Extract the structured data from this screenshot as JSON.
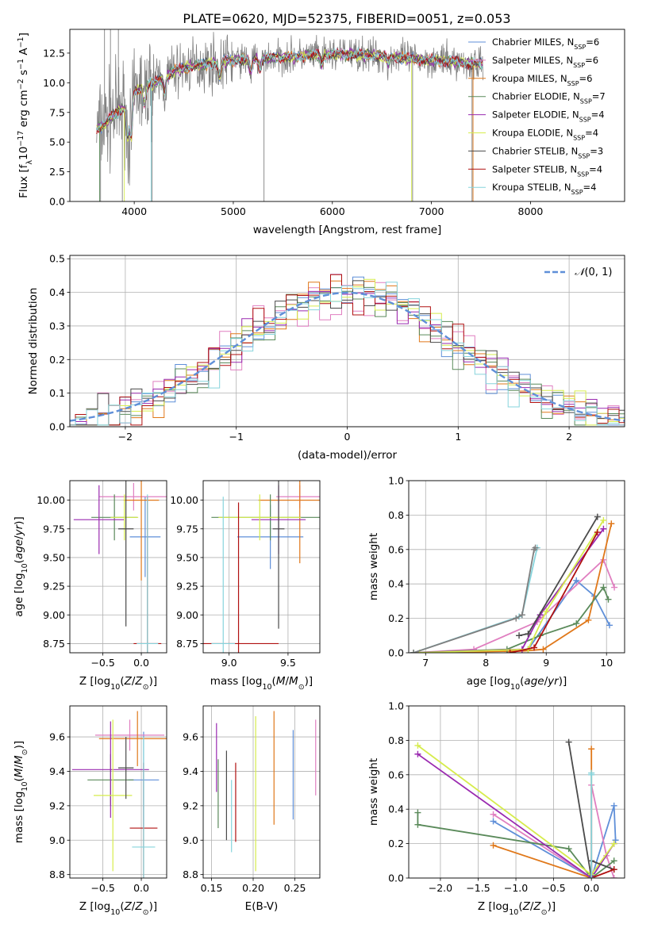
{
  "page_title": "PLATE=0620, MJD=52375, FIBERID=0051, z=0.053",
  "colors": {
    "chabrier_miles": "#5f8fd8",
    "salpeter_miles": "#e07fc0",
    "kroupa_miles": "#e0781a",
    "chabrier_elodie": "#5a8a5a",
    "salpeter_elodie": "#9a2ab0",
    "kroupa_elodie": "#d6ec4c",
    "chabrier_stelib": "#4a4a4a",
    "salpeter_stelib": "#b01010",
    "kroupa_stelib": "#86d4dc",
    "grey": "#808080",
    "normal": "#5f8fd8"
  },
  "chart_data": [
    {
      "id": "spectrum",
      "type": "line",
      "title": "PLATE=0620, MJD=52375, FIBERID=0051, z=0.053",
      "xlabel": "wavelength [Angstrom, rest frame]",
      "ylabel": "Flux [f_λ 10^-17 erg cm^-2 s^-1 A^-1]",
      "xlim": [
        3350,
        8950
      ],
      "ylim": [
        0,
        14.5
      ],
      "xticks": [
        4000,
        5000,
        6000,
        7000,
        8000
      ],
      "yticks": [
        0.0,
        2.5,
        5.0,
        7.5,
        10.0,
        12.5
      ],
      "legend_position": "top-right",
      "legend": [
        {
          "label": "Chabrier MILES, N_SSP=6",
          "base": "Chabrier MILES, N",
          "sub": "SSP",
          "tail": "=6",
          "color": "#5f8fd8"
        },
        {
          "label": "Salpeter MILES, N_SSP=6",
          "base": "Salpeter MILES, N",
          "sub": "SSP",
          "tail": "=6",
          "color": "#e07fc0"
        },
        {
          "label": "Kroupa MILES, N_SSP=6",
          "base": "Kroupa MILES, N",
          "sub": "SSP",
          "tail": "=6",
          "color": "#e0781a"
        },
        {
          "label": "Chabrier ELODIE, N_SSP=7",
          "base": "Chabrier ELODIE, N",
          "sub": "SSP",
          "tail": "=7",
          "color": "#5a8a5a"
        },
        {
          "label": "Salpeter ELODIE, N_SSP=4",
          "base": "Salpeter ELODIE, N",
          "sub": "SSP",
          "tail": "=4",
          "color": "#9a2ab0"
        },
        {
          "label": "Kroupa ELODIE, N_SSP=4",
          "base": "Kroupa ELODIE, N",
          "sub": "SSP",
          "tail": "=4",
          "color": "#d6ec4c"
        },
        {
          "label": "Chabrier STELIB, N_SSP=3",
          "base": "Chabrier STELIB, N",
          "sub": "SSP",
          "tail": "=3",
          "color": "#4a4a4a"
        },
        {
          "label": "Salpeter STELIB, N_SSP=4",
          "base": "Salpeter STELIB, N",
          "sub": "SSP",
          "tail": "=4",
          "color": "#b01010"
        },
        {
          "label": "Kroupa STELIB, N_SSP=4",
          "base": "Kroupa STELIB, N",
          "sub": "SSP",
          "tail": "=4",
          "color": "#86d4dc"
        }
      ],
      "continuum": [
        [
          3620,
          6.1
        ],
        [
          3700,
          6.5
        ],
        [
          3800,
          7.4
        ],
        [
          3900,
          7.9
        ],
        [
          4000,
          9.2
        ],
        [
          4100,
          9.7
        ],
        [
          4200,
          10.0
        ],
        [
          4300,
          10.3
        ],
        [
          4400,
          11.0
        ],
        [
          4500,
          11.2
        ],
        [
          4600,
          11.4
        ],
        [
          4800,
          11.7
        ],
        [
          5000,
          11.9
        ],
        [
          5200,
          12.0
        ],
        [
          5400,
          12.1
        ],
        [
          5600,
          12.2
        ],
        [
          5800,
          12.3
        ],
        [
          6000,
          12.4
        ],
        [
          6200,
          12.4
        ],
        [
          6400,
          12.3
        ],
        [
          6600,
          12.2
        ],
        [
          6800,
          12.0
        ],
        [
          7000,
          11.9
        ],
        [
          7200,
          11.8
        ],
        [
          7400,
          11.6
        ],
        [
          7500,
          11.6
        ]
      ],
      "absorption_lines": [
        [
          3935,
          3.0
        ],
        [
          3970,
          3.5
        ],
        [
          4102,
          1.5
        ],
        [
          4305,
          1.0
        ],
        [
          4862,
          1.2
        ],
        [
          5175,
          1.0
        ],
        [
          5270,
          0.8
        ],
        [
          5892,
          0.8
        ],
        [
          6563,
          0.6
        ]
      ],
      "noise_spikes_down": [
        3660,
        3880,
        4180,
        5310,
        6810,
        7410
      ],
      "noise_spikes_up": [
        3700,
        3760,
        3840
      ]
    },
    {
      "id": "residuals",
      "type": "line",
      "xlabel": "(data-model)/error",
      "ylabel": "Normed distribution",
      "xlim": [
        -2.5,
        2.5
      ],
      "ylim": [
        0,
        0.51
      ],
      "xticks": [
        -2,
        -1,
        0,
        1,
        2
      ],
      "yticks": [
        0.0,
        0.1,
        0.2,
        0.3,
        0.4,
        0.5
      ],
      "legend_position": "top-right",
      "reference_curve_label": "N(0,1)",
      "bin_width": 0.1
    },
    {
      "id": "age-vs-z",
      "type": "scatter",
      "xlabel": "Z [log10(Z/Z_sun)]",
      "ylabel": "age [log10(age/yr)]",
      "xlim": [
        -0.93,
        0.33
      ],
      "ylim": [
        8.67,
        10.17
      ],
      "xticks": [
        -0.5,
        0.0
      ],
      "yticks": [
        8.75,
        9.0,
        9.25,
        9.5,
        9.75,
        10.0
      ],
      "points": [
        {
          "x": 0.05,
          "y": 9.68,
          "xerr": 0.2,
          "yerr": 0.35,
          "color": "#5f8fd8"
        },
        {
          "x": -0.1,
          "y": 10.03,
          "xerr": 0.45,
          "yerr": 0.12,
          "color": "#e07fc0"
        },
        {
          "x": 0.0,
          "y": 10.0,
          "xerr": 0.23,
          "yerr": 0.7,
          "color": "#e0781a"
        },
        {
          "x": -0.35,
          "y": 9.85,
          "xerr": 0.3,
          "yerr": 0.2,
          "color": "#5a8a5a"
        },
        {
          "x": -0.55,
          "y": 9.83,
          "xerr": 0.33,
          "yerr": 0.3,
          "color": "#9a2ab0"
        },
        {
          "x": -0.22,
          "y": 9.85,
          "xerr": 0.18,
          "yerr": 0.2,
          "color": "#d6ec4c"
        },
        {
          "x": -0.2,
          "y": 9.75,
          "xerr": 0.1,
          "yerr": 0.85,
          "color": "#4a4a4a"
        },
        {
          "x": 0.08,
          "y": 8.75,
          "xerr": 0.18,
          "yerr": 1.28,
          "color": "#b01010"
        },
        {
          "x": 0.08,
          "y": 8.75,
          "xerr": 0.14,
          "yerr": 1.3,
          "color": "#86d4dc"
        }
      ]
    },
    {
      "id": "age-vs-mass",
      "type": "scatter",
      "xlabel": "mass [log10(M/M_sun)]",
      "xlim": [
        8.78,
        9.77
      ],
      "ylim": [
        8.67,
        10.17
      ],
      "xticks": [
        9.0,
        9.5
      ],
      "yticks": [
        8.75,
        9.0,
        9.25,
        9.5,
        9.75,
        10.0
      ],
      "points": [
        {
          "x": 9.35,
          "y": 9.68,
          "xerr": 0.28,
          "yerr": 0.28,
          "color": "#5f8fd8"
        },
        {
          "x": 9.6,
          "y": 10.03,
          "xerr": 0.2,
          "yerr": 0.1,
          "color": "#e07fc0"
        },
        {
          "x": 9.6,
          "y": 10.0,
          "xerr": 0.35,
          "yerr": 0.55,
          "color": "#e0781a"
        },
        {
          "x": 9.35,
          "y": 9.85,
          "xerr": 0.5,
          "yerr": 0.2,
          "color": "#5a8a5a"
        },
        {
          "x": 9.42,
          "y": 9.83,
          "xerr": 0.23,
          "yerr": 0.3,
          "color": "#9a2ab0"
        },
        {
          "x": 9.26,
          "y": 9.85,
          "xerr": 0.35,
          "yerr": 0.2,
          "color": "#d6ec4c"
        },
        {
          "x": 9.42,
          "y": 9.75,
          "xerr": 0.05,
          "yerr": 0.87,
          "color": "#4a4a4a"
        },
        {
          "x": 9.08,
          "y": 8.75,
          "xerr": 0.34,
          "yerr": 1.23,
          "color": "#b01010"
        },
        {
          "x": 8.95,
          "y": 8.75,
          "xerr": 0.1,
          "yerr": 1.28,
          "color": "#86d4dc"
        }
      ]
    },
    {
      "id": "mass-weight-vs-age",
      "type": "line",
      "xlabel": "age [log10(age/yr)]",
      "ylabel": "mass weight",
      "xlim": [
        6.72,
        10.3
      ],
      "ylim": [
        0,
        1.0
      ],
      "xticks": [
        7,
        8,
        9,
        10
      ],
      "yticks": [
        0.0,
        0.2,
        0.4,
        0.6,
        0.8,
        1.0
      ],
      "series": [
        {
          "color": "#5f8fd8",
          "points": [
            [
              6.9,
              0.0
            ],
            [
              8.7,
              0.02
            ],
            [
              9.5,
              0.42
            ],
            [
              9.8,
              0.33
            ],
            [
              10.05,
              0.16
            ]
          ]
        },
        {
          "color": "#e07fc0",
          "points": [
            [
              6.8,
              0.0
            ],
            [
              7.8,
              0.02
            ],
            [
              8.85,
              0.18
            ],
            [
              9.95,
              0.54
            ],
            [
              10.13,
              0.38
            ]
          ]
        },
        {
          "color": "#e0781a",
          "points": [
            [
              6.8,
              0.0
            ],
            [
              8.6,
              0.01
            ],
            [
              8.95,
              0.02
            ],
            [
              9.7,
              0.19
            ],
            [
              10.08,
              0.75
            ]
          ]
        },
        {
          "color": "#5a8a5a",
          "points": [
            [
              6.8,
              0.0
            ],
            [
              8.35,
              0.02
            ],
            [
              8.9,
              0.1
            ],
            [
              9.5,
              0.17
            ],
            [
              9.95,
              0.38
            ],
            [
              10.03,
              0.31
            ]
          ]
        },
        {
          "color": "#9a2ab0",
          "points": [
            [
              6.9,
              0.0
            ],
            [
              8.6,
              0.02
            ],
            [
              8.9,
              0.22
            ],
            [
              9.95,
              0.72
            ]
          ]
        },
        {
          "color": "#d6ec4c",
          "points": [
            [
              6.9,
              0.0
            ],
            [
              8.7,
              0.02
            ],
            [
              9.0,
              0.24
            ],
            [
              9.95,
              0.77
            ]
          ]
        },
        {
          "color": "#4a4a4a",
          "points": [
            [
              8.55,
              0.1
            ],
            [
              8.7,
              0.11
            ],
            [
              9.85,
              0.79
            ]
          ]
        },
        {
          "color": "#b01010",
          "points": [
            [
              8.4,
              0.0
            ],
            [
              8.8,
              0.03
            ],
            [
              9.85,
              0.7
            ]
          ]
        },
        {
          "color": "#86d4dc",
          "points": [
            [
              6.8,
              0.0
            ],
            [
              8.55,
              0.21
            ],
            [
              8.6,
              0.22
            ],
            [
              8.85,
              0.61
            ]
          ]
        },
        {
          "color": "#808080",
          "points": [
            [
              6.8,
              0.0
            ],
            [
              8.5,
              0.2
            ],
            [
              8.6,
              0.22
            ],
            [
              8.8,
              0.6
            ],
            [
              8.82,
              0.61
            ]
          ]
        }
      ]
    },
    {
      "id": "mass-vs-z",
      "type": "scatter",
      "xlabel": "Z [log10(Z/Z_sun)]",
      "ylabel": "mass [log10(M/M_sun)]",
      "xlim": [
        -0.93,
        0.33
      ],
      "ylim": [
        8.78,
        9.78
      ],
      "xticks": [
        -0.5,
        0.0
      ],
      "yticks": [
        8.8,
        9.0,
        9.2,
        9.4,
        9.6
      ],
      "points": [
        {
          "x": 0.03,
          "y": 9.35,
          "xerr": 0.2,
          "yerr": 0.28,
          "color": "#5f8fd8"
        },
        {
          "x": -0.15,
          "y": 9.61,
          "xerr": 0.45,
          "yerr": 0.09,
          "color": "#e07fc0"
        },
        {
          "x": -0.05,
          "y": 9.59,
          "xerr": 0.5,
          "yerr": 0.16,
          "color": "#e0781a"
        },
        {
          "x": -0.4,
          "y": 9.35,
          "xerr": 0.3,
          "yerr": 0.15,
          "color": "#5a8a5a"
        },
        {
          "x": -0.4,
          "y": 9.41,
          "xerr": 0.5,
          "yerr": 0.28,
          "color": "#9a2ab0"
        },
        {
          "x": -0.37,
          "y": 9.26,
          "xerr": 0.25,
          "yerr": 0.44,
          "color": "#d6ec4c"
        },
        {
          "x": -0.2,
          "y": 9.42,
          "xerr": 0.1,
          "yerr": 0.18,
          "color": "#4a4a4a"
        },
        {
          "x": 0.03,
          "y": 9.07,
          "xerr": 0.18,
          "yerr": 0.38,
          "color": "#b01010"
        },
        {
          "x": 0.03,
          "y": 8.96,
          "xerr": 0.15,
          "yerr": 0.64,
          "color": "#86d4dc"
        }
      ]
    },
    {
      "id": "mass-vs-ebv",
      "type": "scatter",
      "xlabel": "E(B-V)",
      "xlim": [
        0.14,
        0.28
      ],
      "ylim": [
        8.78,
        9.78
      ],
      "xticks": [
        0.15,
        0.2,
        0.25
      ],
      "yticks": [
        8.8,
        9.0,
        9.2,
        9.4,
        9.6
      ],
      "points": [
        {
          "x": 0.248,
          "y": 9.38,
          "yerr": 0.26,
          "color": "#5f8fd8"
        },
        {
          "x": 0.275,
          "y": 9.48,
          "yerr": 0.22,
          "color": "#e07fc0"
        },
        {
          "x": 0.225,
          "y": 9.42,
          "yerr": 0.33,
          "color": "#e0781a"
        },
        {
          "x": 0.158,
          "y": 9.27,
          "yerr": 0.2,
          "color": "#5a8a5a"
        },
        {
          "x": 0.156,
          "y": 9.48,
          "yerr": 0.2,
          "color": "#9a2ab0"
        },
        {
          "x": 0.203,
          "y": 9.27,
          "yerr": 0.45,
          "color": "#d6ec4c"
        },
        {
          "x": 0.168,
          "y": 9.26,
          "yerr": 0.26,
          "color": "#4a4a4a"
        },
        {
          "x": 0.179,
          "y": 9.22,
          "yerr": 0.23,
          "color": "#b01010"
        },
        {
          "x": 0.174,
          "y": 9.14,
          "yerr": 0.21,
          "color": "#86d4dc"
        }
      ]
    },
    {
      "id": "mass-weight-vs-z",
      "type": "line",
      "xlabel": "Z [log10(Z/Z_sun)]",
      "ylabel": "mass weight",
      "xlim": [
        -2.42,
        0.44
      ],
      "ylim": [
        0,
        1.0
      ],
      "xticks": [
        -2.0,
        -1.5,
        -1.0,
        -0.5,
        0.0
      ],
      "yticks": [
        0.0,
        0.2,
        0.4,
        0.6,
        0.8,
        1.0
      ],
      "series": [
        {
          "color": "#5f8fd8",
          "points": [
            [
              -1.3,
              0.33
            ],
            [
              0.0,
              0.0
            ],
            [
              0.3,
              0.42
            ],
            [
              0.32,
              0.22
            ]
          ]
        },
        {
          "color": "#e07fc0",
          "points": [
            [
              -1.3,
              0.37
            ],
            [
              0.0,
              0.0
            ],
            [
              0.0,
              0.54
            ],
            [
              0.2,
              0.13
            ],
            [
              0.3,
              0.0
            ]
          ]
        },
        {
          "color": "#e0781a",
          "points": [
            [
              -1.3,
              0.19
            ],
            [
              0.0,
              0.0
            ],
            [
              0.0,
              0.75
            ]
          ]
        },
        {
          "color": "#5a8a5a",
          "points": [
            [
              -2.3,
              0.38
            ],
            [
              -2.3,
              0.31
            ],
            [
              -0.3,
              0.17
            ],
            [
              0.0,
              0.0
            ],
            [
              0.3,
              0.1
            ]
          ]
        },
        {
          "color": "#9a2ab0",
          "points": [
            [
              -2.3,
              0.72
            ],
            [
              0.0,
              0.0
            ],
            [
              0.3,
              0.2
            ]
          ]
        },
        {
          "color": "#d6ec4c",
          "points": [
            [
              -2.3,
              0.77
            ],
            [
              0.0,
              0.02
            ],
            [
              0.3,
              0.2
            ]
          ]
        },
        {
          "color": "#4a4a4a",
          "points": [
            [
              -0.3,
              0.79
            ],
            [
              0.0,
              0.0
            ],
            [
              0.0,
              0.1
            ],
            [
              0.3,
              0.05
            ]
          ]
        },
        {
          "color": "#b01010",
          "points": [
            [
              0.0,
              0.0
            ],
            [
              0.3,
              0.05
            ]
          ]
        },
        {
          "color": "#86d4dc",
          "points": [
            [
              0.0,
              0.61
            ],
            [
              0.0,
              0.0
            ],
            [
              0.0,
              0.6
            ]
          ]
        }
      ]
    }
  ]
}
